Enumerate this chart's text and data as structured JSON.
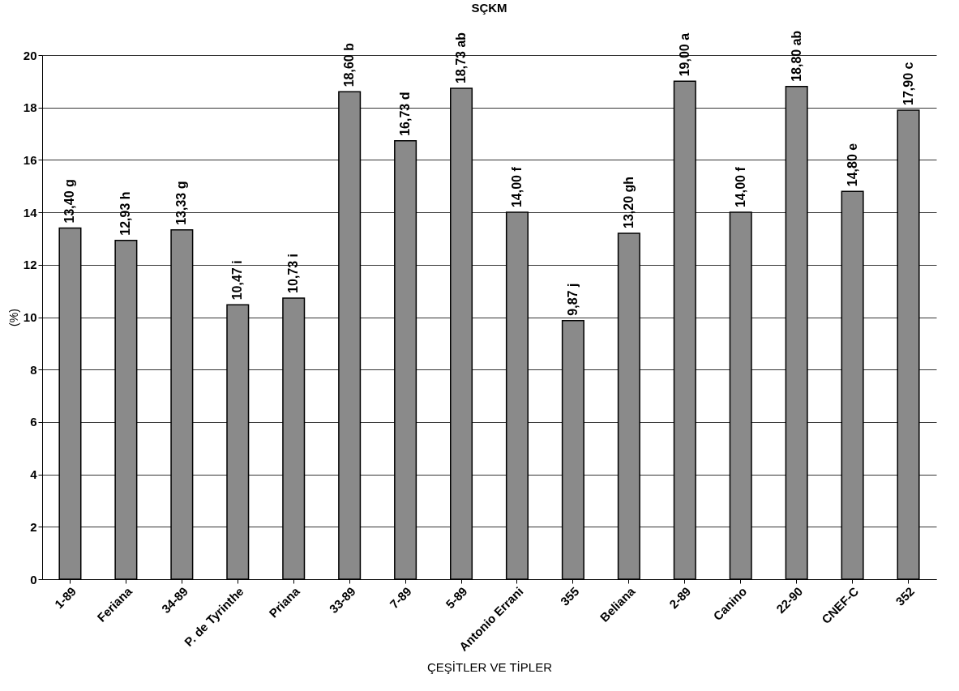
{
  "chart_data": {
    "type": "bar",
    "title": "SÇKM",
    "xlabel": "ÇEŞİTLER VE TİPLER",
    "ylabel": "(%)",
    "categories": [
      "1-89",
      "Feriana",
      "34-89",
      "P. de Tyrinthe",
      "Priana",
      "33-89",
      "7-89",
      "5-89",
      "Antonio Errani",
      "355",
      "Beliana",
      "2-89",
      "Canino",
      "22-90",
      "CNEF-C",
      "352"
    ],
    "values": [
      13.4,
      12.93,
      13.33,
      10.47,
      10.73,
      18.6,
      16.73,
      18.73,
      14.0,
      9.87,
      13.2,
      19.0,
      14.0,
      18.8,
      14.8,
      17.9
    ],
    "value_labels": [
      "13,40 g",
      "12,93 h",
      "13,33 g",
      "10,47 i",
      "10,73 i",
      "18,60 b",
      "16,73 d",
      "18,73 ab",
      "14,00 f",
      "9,87 j",
      "13,20 gh",
      "19,00 a",
      "14,00 f",
      "18,80 ab",
      "14,80 e",
      "17,90 c"
    ],
    "color": "#8a8a8a",
    "ylim": [
      0,
      20
    ],
    "yticks": [
      0,
      2,
      4,
      6,
      8,
      10,
      12,
      14,
      16,
      18,
      20
    ],
    "grid": "y"
  }
}
